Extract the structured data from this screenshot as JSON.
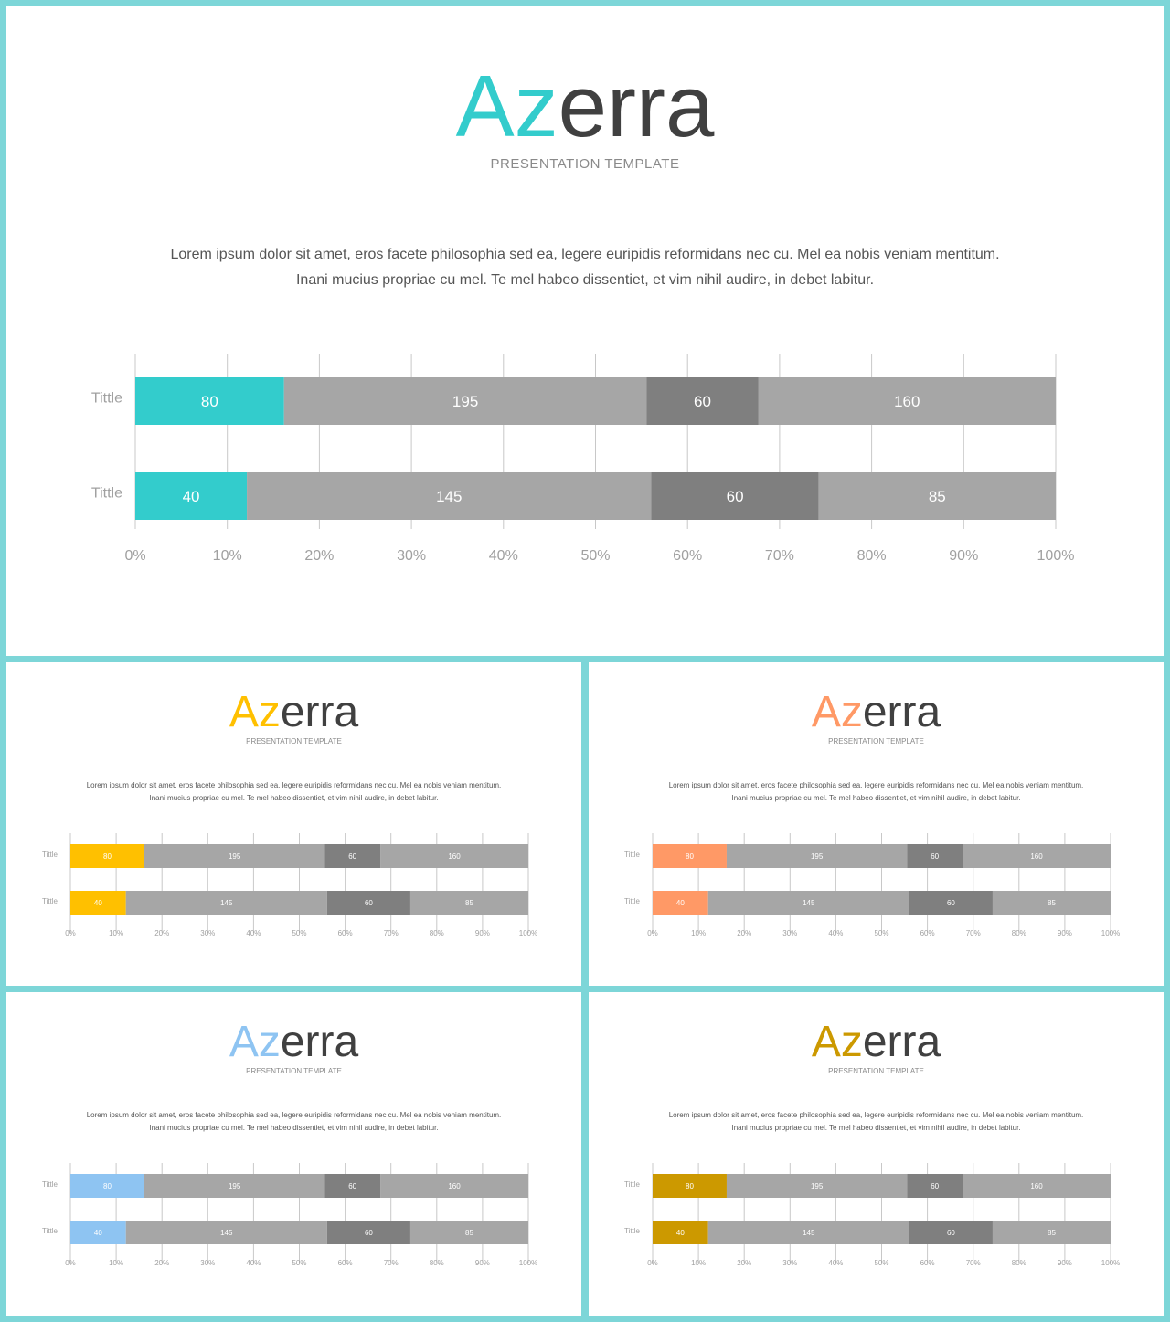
{
  "slides": [
    {
      "logo_accent": "Az",
      "logo_rest": "erra",
      "subtitle": "PRESENTATION TEMPLATE",
      "body_line1": "Lorem ipsum dolor sit amet, eros facete philosophia sed ea, legere euripidis reformidans nec cu. Mel ea nobis veniam mentitum.",
      "body_line2": "Inani mucius propriae cu mel. Te mel habeo dissentiet, et vim nihil audire, in debet labitur.",
      "accent_color": "#33cccc"
    },
    {
      "logo_accent": "Az",
      "logo_rest": "erra",
      "subtitle": "PRESENTATION TEMPLATE",
      "body_line1": "Lorem ipsum dolor sit amet, eros facete philosophia sed ea, legere euripidis reformidans nec cu. Mel ea nobis veniam mentitum.",
      "body_line2": "Inani mucius propriae cu mel. Te mel habeo dissentiet, et vim nihil audire, in debet labitur.",
      "accent_color": "#ffc000"
    },
    {
      "logo_accent": "Az",
      "logo_rest": "erra",
      "subtitle": "PRESENTATION TEMPLATE",
      "body_line1": "Lorem ipsum dolor sit amet, eros facete philosophia sed ea, legere euripidis reformidans nec cu. Mel ea nobis veniam mentitum.",
      "body_line2": "Inani mucius propriae cu mel. Te mel habeo dissentiet, et vim nihil audire, in debet labitur.",
      "accent_color": "#ff9966"
    },
    {
      "logo_accent": "Az",
      "logo_rest": "erra",
      "subtitle": "PRESENTATION TEMPLATE",
      "body_line1": "Lorem ipsum dolor sit amet, eros facete philosophia sed ea, legere euripidis reformidans nec cu. Mel ea nobis veniam mentitum.",
      "body_line2": "Inani mucius propriae cu mel. Te mel habeo dissentiet, et vim nihil audire, in debet labitur.",
      "accent_color": "#8ec4f2"
    },
    {
      "logo_accent": "Az",
      "logo_rest": "erra",
      "subtitle": "PRESENTATION TEMPLATE",
      "body_line1": "Lorem ipsum dolor sit amet, eros facete philosophia sed ea, legere euripidis reformidans nec cu. Mel ea nobis veniam mentitum.",
      "body_line2": "Inani mucius propriae cu mel. Te mel habeo dissentiet, et vim nihil audire, in debet labitur.",
      "accent_color": "#cc9900"
    }
  ],
  "chart_data": [
    {
      "type": "bar",
      "orientation": "horizontal",
      "stacked": "100%",
      "categories": [
        "Tittle",
        "Tittle"
      ],
      "series": [
        {
          "values": [
            80,
            40
          ],
          "color": "#33cccc"
        },
        {
          "values": [
            195,
            145
          ],
          "color": "#a6a6a6"
        },
        {
          "values": [
            60,
            60
          ],
          "color": "#7f7f7f"
        },
        {
          "values": [
            160,
            85
          ],
          "color": "#a6a6a6"
        }
      ],
      "x_ticks": [
        "0%",
        "10%",
        "20%",
        "30%",
        "40%",
        "50%",
        "60%",
        "70%",
        "80%",
        "90%",
        "100%"
      ],
      "xlim": [
        0,
        100
      ],
      "grid": true
    },
    {
      "type": "bar",
      "orientation": "horizontal",
      "stacked": "100%",
      "categories": [
        "Tittle",
        "Tittle"
      ],
      "series": [
        {
          "values": [
            80,
            40
          ],
          "color": "#ffc000"
        },
        {
          "values": [
            195,
            145
          ],
          "color": "#a6a6a6"
        },
        {
          "values": [
            60,
            60
          ],
          "color": "#7f7f7f"
        },
        {
          "values": [
            160,
            85
          ],
          "color": "#a6a6a6"
        }
      ],
      "x_ticks": [
        "0%",
        "10%",
        "20%",
        "30%",
        "40%",
        "50%",
        "60%",
        "70%",
        "80%",
        "90%",
        "100%"
      ],
      "xlim": [
        0,
        100
      ],
      "grid": true
    },
    {
      "type": "bar",
      "orientation": "horizontal",
      "stacked": "100%",
      "categories": [
        "Tittle",
        "Tittle"
      ],
      "series": [
        {
          "values": [
            80,
            40
          ],
          "color": "#ff9966"
        },
        {
          "values": [
            195,
            145
          ],
          "color": "#a6a6a6"
        },
        {
          "values": [
            60,
            60
          ],
          "color": "#7f7f7f"
        },
        {
          "values": [
            160,
            85
          ],
          "color": "#a6a6a6"
        }
      ],
      "x_ticks": [
        "0%",
        "10%",
        "20%",
        "30%",
        "40%",
        "50%",
        "60%",
        "70%",
        "80%",
        "90%",
        "100%"
      ],
      "xlim": [
        0,
        100
      ],
      "grid": true
    },
    {
      "type": "bar",
      "orientation": "horizontal",
      "stacked": "100%",
      "categories": [
        "Tittle",
        "Tittle"
      ],
      "series": [
        {
          "values": [
            80,
            40
          ],
          "color": "#8ec4f2"
        },
        {
          "values": [
            195,
            145
          ],
          "color": "#a6a6a6"
        },
        {
          "values": [
            60,
            60
          ],
          "color": "#7f7f7f"
        },
        {
          "values": [
            160,
            85
          ],
          "color": "#a6a6a6"
        }
      ],
      "x_ticks": [
        "0%",
        "10%",
        "20%",
        "30%",
        "40%",
        "50%",
        "60%",
        "70%",
        "80%",
        "90%",
        "100%"
      ],
      "xlim": [
        0,
        100
      ],
      "grid": true
    },
    {
      "type": "bar",
      "orientation": "horizontal",
      "stacked": "100%",
      "categories": [
        "Tittle",
        "Tittle"
      ],
      "series": [
        {
          "values": [
            80,
            40
          ],
          "color": "#cc9900"
        },
        {
          "values": [
            195,
            145
          ],
          "color": "#a6a6a6"
        },
        {
          "values": [
            60,
            60
          ],
          "color": "#7f7f7f"
        },
        {
          "values": [
            160,
            85
          ],
          "color": "#a6a6a6"
        }
      ],
      "x_ticks": [
        "0%",
        "10%",
        "20%",
        "30%",
        "40%",
        "50%",
        "60%",
        "70%",
        "80%",
        "90%",
        "100%"
      ],
      "xlim": [
        0,
        100
      ],
      "grid": true
    }
  ]
}
